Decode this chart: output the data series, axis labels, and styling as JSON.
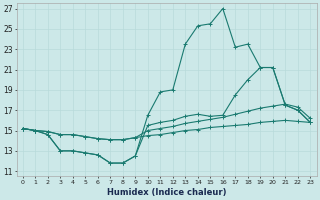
{
  "xlabel": "Humidex (Indice chaleur)",
  "xlim": [
    -0.5,
    23.5
  ],
  "ylim": [
    10.5,
    27.5
  ],
  "xticks": [
    0,
    1,
    2,
    3,
    4,
    5,
    6,
    7,
    8,
    9,
    10,
    11,
    12,
    13,
    14,
    15,
    16,
    17,
    18,
    19,
    20,
    21,
    22,
    23
  ],
  "yticks": [
    11,
    13,
    15,
    17,
    19,
    21,
    23,
    25,
    27
  ],
  "grid_color": "#b8dada",
  "bg_color": "#cce8e8",
  "line_color": "#1a7a70",
  "line1_x": [
    0,
    1,
    2,
    3,
    4,
    5,
    6,
    7,
    8,
    9,
    10,
    11,
    12,
    13,
    14,
    15,
    16,
    17,
    18,
    19,
    20,
    21,
    22,
    23
  ],
  "line1_y": [
    15.2,
    15.0,
    14.6,
    13.0,
    13.0,
    12.8,
    12.6,
    11.8,
    11.8,
    12.5,
    16.5,
    18.8,
    19.0,
    23.5,
    25.3,
    25.5,
    27.0,
    23.2,
    23.5,
    21.2,
    21.2,
    17.5,
    17.0,
    15.8
  ],
  "line2_x": [
    0,
    1,
    2,
    3,
    4,
    5,
    6,
    7,
    8,
    9,
    10,
    11,
    12,
    13,
    14,
    15,
    16,
    17,
    18,
    19,
    20,
    21,
    22,
    23
  ],
  "line2_y": [
    15.2,
    15.0,
    14.6,
    13.0,
    13.0,
    12.8,
    12.6,
    11.8,
    11.8,
    12.5,
    15.5,
    15.8,
    16.0,
    16.4,
    16.6,
    16.4,
    16.5,
    18.5,
    20.0,
    21.2,
    21.2,
    17.5,
    17.0,
    15.8
  ],
  "line3_x": [
    0,
    1,
    2,
    3,
    4,
    5,
    6,
    7,
    8,
    9,
    10,
    11,
    12,
    13,
    14,
    15,
    16,
    17,
    18,
    19,
    20,
    21,
    22,
    23
  ],
  "line3_y": [
    15.2,
    15.0,
    14.9,
    14.6,
    14.6,
    14.4,
    14.2,
    14.1,
    14.1,
    14.3,
    15.0,
    15.2,
    15.4,
    15.7,
    15.9,
    16.1,
    16.3,
    16.6,
    16.9,
    17.2,
    17.4,
    17.6,
    17.3,
    16.2
  ],
  "line4_x": [
    0,
    1,
    2,
    3,
    4,
    5,
    6,
    7,
    8,
    9,
    10,
    11,
    12,
    13,
    14,
    15,
    16,
    17,
    18,
    19,
    20,
    21,
    22,
    23
  ],
  "line4_y": [
    15.2,
    15.0,
    14.9,
    14.6,
    14.6,
    14.4,
    14.2,
    14.1,
    14.1,
    14.3,
    14.5,
    14.6,
    14.8,
    15.0,
    15.1,
    15.3,
    15.4,
    15.5,
    15.6,
    15.8,
    15.9,
    16.0,
    15.9,
    15.8
  ]
}
